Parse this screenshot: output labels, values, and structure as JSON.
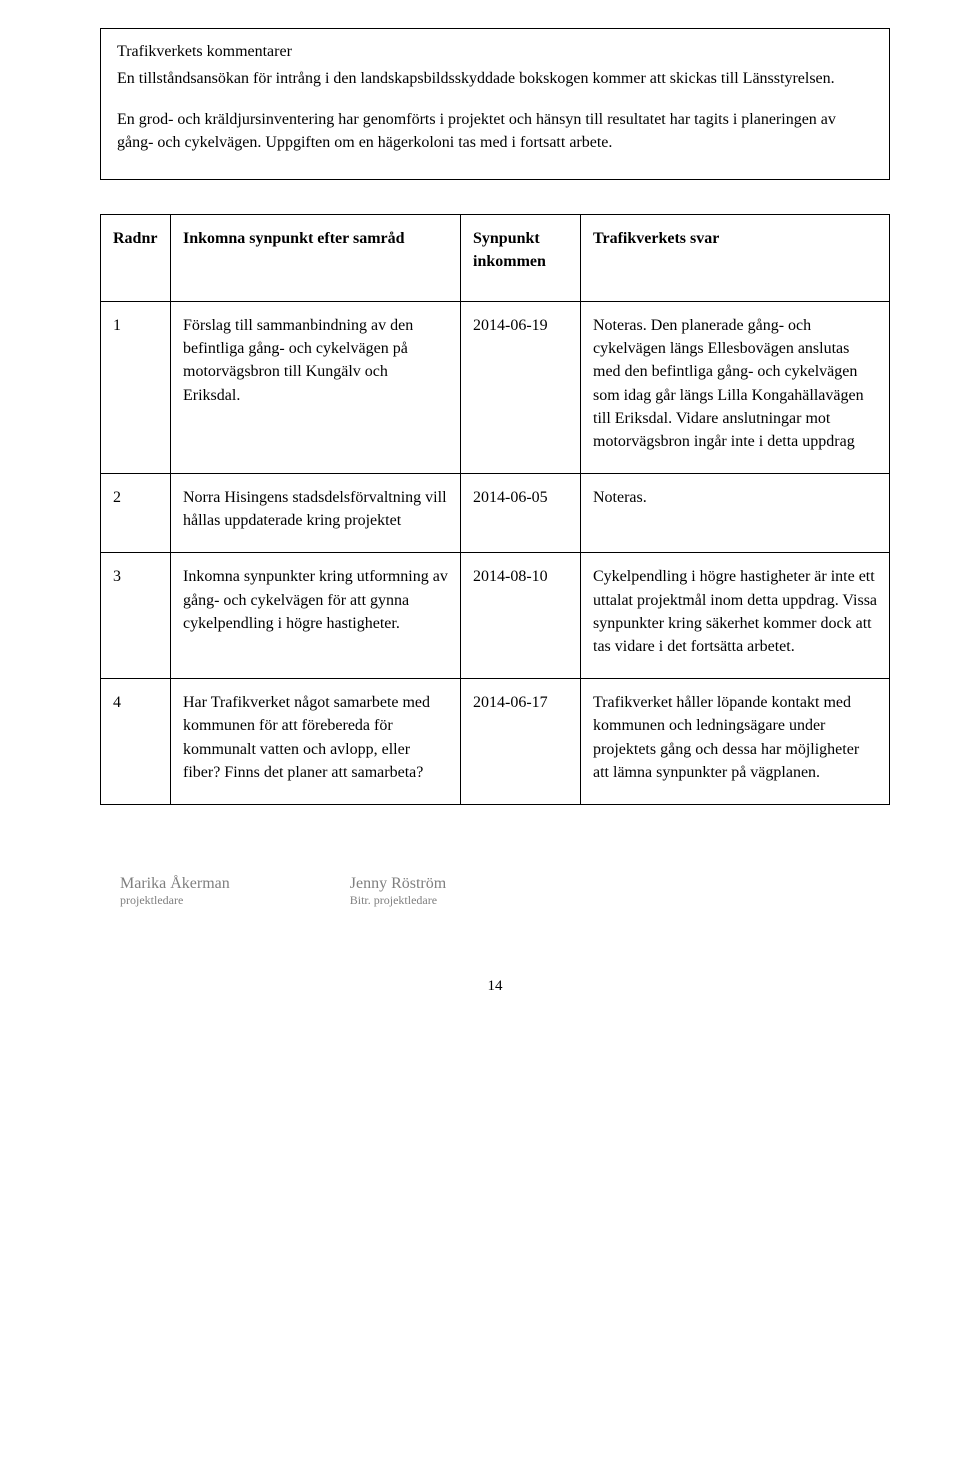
{
  "comments": {
    "heading": "Trafikverkets kommentarer",
    "p1": "En tillståndsansökan för intrång i den landskapsbildsskyddade bokskogen kommer att skickas till Länsstyrelsen.",
    "p2": "En grod- och kräldjursinventering har genomförts i projektet och hänsyn till resultatet har tagits i planeringen av gång- och cykelvägen. Uppgiften om en hägerkoloni tas med i fortsatt arbete."
  },
  "table": {
    "headers": {
      "radnr": "Radnr",
      "syn": "Inkomna synpunkt efter samråd",
      "date": "Synpunkt inkommen",
      "svar": "Trafikverkets svar"
    },
    "rows": [
      {
        "nr": "1",
        "syn": "Förslag till sammanbindning av den befintliga gång- och cykelvägen på motorvägsbron till Kungälv och Eriksdal.",
        "date": "2014-06-19",
        "svar": "Noteras. Den planerade gång- och cykelvägen längs Ellesbovägen anslutas med den befintliga gång- och cykelvägen som idag går längs Lilla Kongahällavägen till Eriksdal. Vidare anslutningar mot motorvägsbron ingår inte i detta uppdrag"
      },
      {
        "nr": "2",
        "syn": "Norra Hisingens stadsdelsförvaltning vill hållas uppdaterade kring projektet",
        "date": "2014-06-05",
        "svar": "Noteras."
      },
      {
        "nr": "3",
        "syn": "Inkomna synpunkter kring utformning av gång- och cykelvägen för att gynna cykelpendling i högre hastigheter.",
        "date": "2014-08-10",
        "svar": "Cykelpendling i högre hastigheter är inte ett uttalat projektmål inom detta uppdrag. Vissa synpunkter kring säkerhet kommer dock att tas vidare i det fortsätta arbetet."
      },
      {
        "nr": "4",
        "syn": "Har Trafikverket något samarbete med kommunen för att förebereda för kommunalt vatten och avlopp, eller fiber? Finns det planer att samarbeta?",
        "date": "2014-06-17",
        "svar": "Trafikverket håller löpande kontakt med kommunen och ledningsägare under projektets gång och dessa har möjligheter att lämna synpunkter på vägplanen."
      }
    ]
  },
  "signatures": {
    "left": {
      "name": "Marika Åkerman",
      "role": "projektledare"
    },
    "right": {
      "name": "Jenny Röström",
      "role": "Bitr. projektledare"
    }
  },
  "pageNumber": "14"
}
